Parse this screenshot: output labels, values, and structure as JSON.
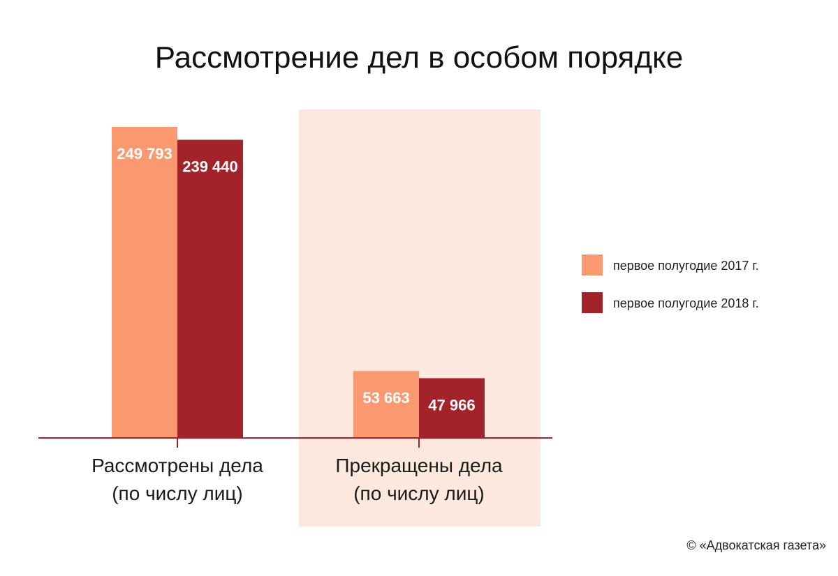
{
  "colors": {
    "series_2017": "#FA9970",
    "series_2018": "#A3232A",
    "highlight_band": "#FDE8E0",
    "axis": "#A3232A"
  },
  "credit": "© «Адвокатская газета»",
  "chart_data": {
    "type": "bar",
    "title": "Рассмотрение дел в особом порядке",
    "categories": [
      [
        "Рассмотрены дела",
        "(по числу лиц)"
      ],
      [
        "Прекращены дела",
        "(по числу лиц)"
      ]
    ],
    "series": [
      {
        "name": "первое полугодие 2017 г.",
        "values": [
          249793,
          53663
        ],
        "labels": [
          "249 793",
          "53 663"
        ]
      },
      {
        "name": "первое полугодие 2018 г.",
        "values": [
          239440,
          47966
        ],
        "labels": [
          "239 440",
          "47 966"
        ]
      }
    ],
    "ylim": [
      0,
      249793
    ],
    "grid": false,
    "legend_position": "right",
    "highlighted_category": 1
  }
}
